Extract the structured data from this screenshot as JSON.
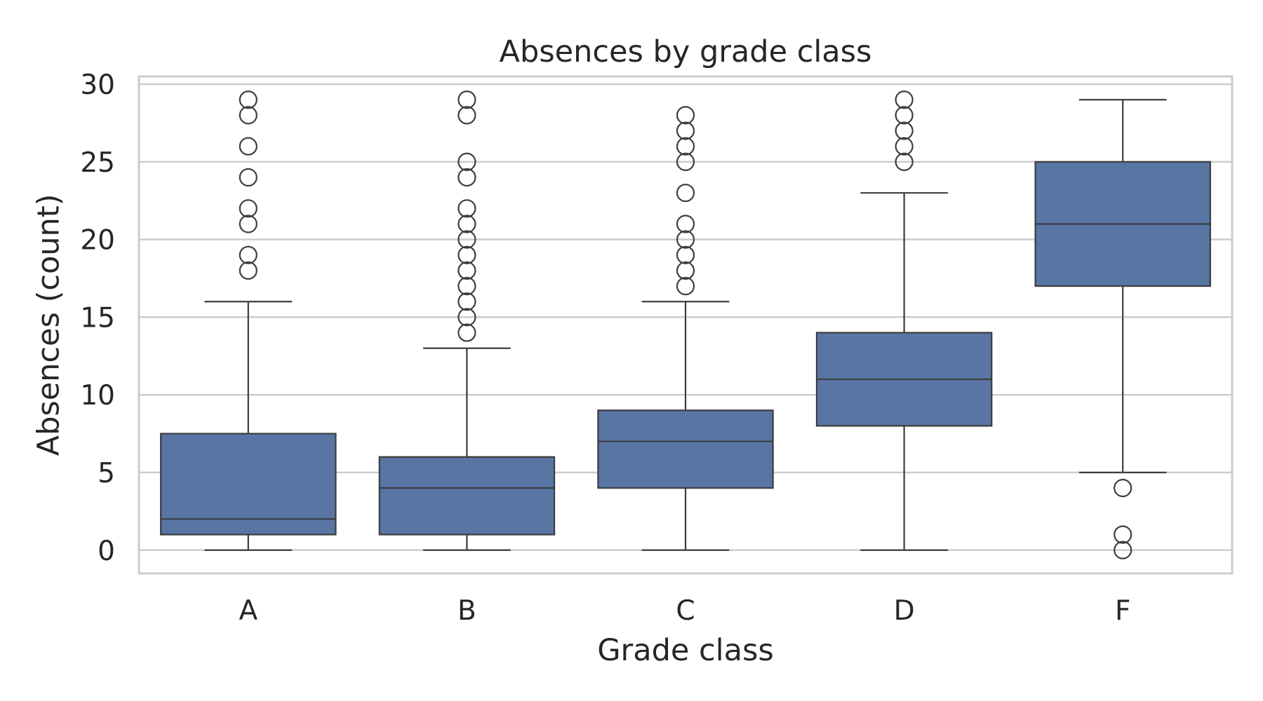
{
  "chart_data": {
    "type": "box",
    "title": "Absences by grade class",
    "xlabel": "Grade class",
    "ylabel": "Absences (count)",
    "ylim": [
      -1.5,
      30.5
    ],
    "yticks": [
      0,
      5,
      10,
      15,
      20,
      25,
      30
    ],
    "grid": true,
    "categories": [
      "A",
      "B",
      "C",
      "D",
      "F"
    ],
    "boxes": [
      {
        "category": "A",
        "whisker_low": 0,
        "q1": 1,
        "median": 2,
        "q3": 7.5,
        "whisker_high": 16,
        "outliers": [
          18,
          19,
          21,
          22,
          24,
          26,
          28,
          29
        ]
      },
      {
        "category": "B",
        "whisker_low": 0,
        "q1": 1,
        "median": 4,
        "q3": 6,
        "whisker_high": 13,
        "outliers": [
          14,
          15,
          16,
          17,
          18,
          19,
          20,
          21,
          22,
          24,
          25,
          28,
          29
        ]
      },
      {
        "category": "C",
        "whisker_low": 0,
        "q1": 4,
        "median": 7,
        "q3": 9,
        "whisker_high": 16,
        "outliers": [
          17,
          18,
          19,
          20,
          21,
          23,
          25,
          26,
          27,
          28
        ]
      },
      {
        "category": "D",
        "whisker_low": 0,
        "q1": 8,
        "median": 11,
        "q3": 14,
        "whisker_high": 23,
        "outliers": [
          25,
          26,
          27,
          28,
          29
        ]
      },
      {
        "category": "F",
        "whisker_low": 5,
        "q1": 17,
        "median": 21,
        "q3": 25,
        "whisker_high": 29,
        "outliers": [
          0,
          1,
          4
        ]
      }
    ],
    "colors": {
      "box_fill": "#5875a4",
      "line": "#3d3d3d",
      "grid": "#cccccc",
      "frame": "#cccccc",
      "text": "#262626"
    }
  }
}
